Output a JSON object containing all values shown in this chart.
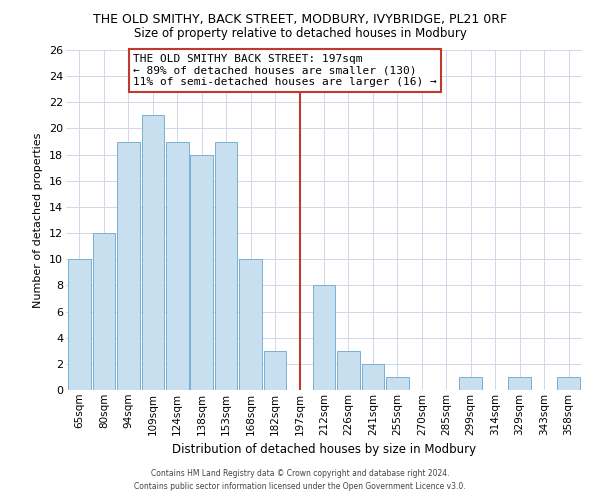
{
  "title": "THE OLD SMITHY, BACK STREET, MODBURY, IVYBRIDGE, PL21 0RF",
  "subtitle": "Size of property relative to detached houses in Modbury",
  "xlabel": "Distribution of detached houses by size in Modbury",
  "ylabel": "Number of detached properties",
  "categories": [
    "65sqm",
    "80sqm",
    "94sqm",
    "109sqm",
    "124sqm",
    "138sqm",
    "153sqm",
    "168sqm",
    "182sqm",
    "197sqm",
    "212sqm",
    "226sqm",
    "241sqm",
    "255sqm",
    "270sqm",
    "285sqm",
    "299sqm",
    "314sqm",
    "329sqm",
    "343sqm",
    "358sqm"
  ],
  "values": [
    10,
    12,
    19,
    21,
    19,
    18,
    19,
    10,
    3,
    0,
    8,
    3,
    2,
    1,
    0,
    0,
    1,
    0,
    1,
    0,
    1
  ],
  "highlight_index": 9,
  "highlight_color": "#c0392b",
  "bar_color": "#c8dff0",
  "bar_edge_color": "#7aafd4",
  "ylim": [
    0,
    26
  ],
  "yticks": [
    0,
    2,
    4,
    6,
    8,
    10,
    12,
    14,
    16,
    18,
    20,
    22,
    24,
    26
  ],
  "annotation_title": "THE OLD SMITHY BACK STREET: 197sqm",
  "annotation_line1": "← 89% of detached houses are smaller (130)",
  "annotation_line2": "11% of semi-detached houses are larger (16) →",
  "red_line_x": 9,
  "footer_line1": "Contains HM Land Registry data © Crown copyright and database right 2024.",
  "footer_line2": "Contains public sector information licensed under the Open Government Licence v3.0.",
  "background_color": "#ffffff",
  "grid_color": "#d0d8e8"
}
